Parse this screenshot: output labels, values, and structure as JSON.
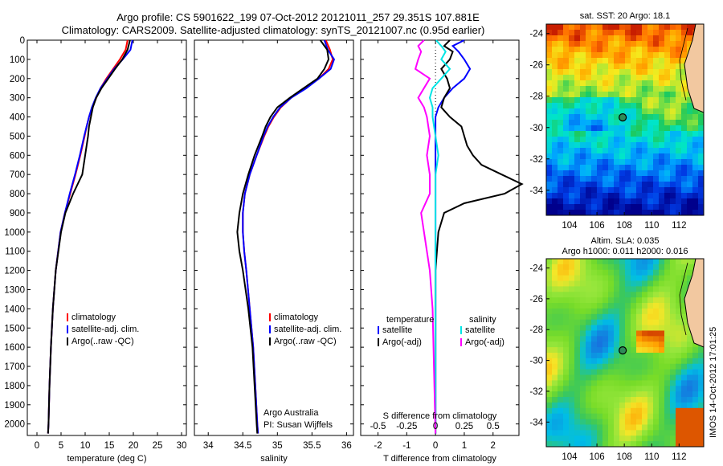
{
  "title_line1": "Argo profile: CS 5901622_199 07-Oct-2012 20121011_257 29.351S 107.881E",
  "title_line2": "Climatology: CARS2009. Satellite-adjusted climatology: synTS_20121007.nc (0.95d earlier)",
  "colors": {
    "climatology": "#ff0000",
    "satellite": "#0000ff",
    "argo": "#000000",
    "sat_salinity": "#00e5e5",
    "argo_salinity": "#ff00ff"
  },
  "chart_data": [
    {
      "type": "line",
      "xlabel": "temperature (deg C)",
      "xlim": [
        -2,
        31
      ],
      "ylim": [
        0,
        2060
      ],
      "y_ticks": [
        0,
        100,
        200,
        300,
        400,
        500,
        600,
        700,
        800,
        900,
        1000,
        1100,
        1200,
        1300,
        1400,
        1500,
        1600,
        1700,
        1800,
        1900,
        2000
      ],
      "x_ticks": [
        0,
        5,
        10,
        15,
        20,
        25,
        30
      ],
      "legend": [
        "climatology",
        "satellite-adj. clim.",
        "Argo(..raw -QC)"
      ],
      "series": [
        {
          "name": "climatology",
          "y": [
            0,
            50,
            100,
            150,
            200,
            250,
            300,
            350,
            400,
            450,
            500,
            600,
            700,
            800,
            900,
            1000,
            1200,
            1400,
            1600,
            1800,
            2000,
            2050
          ],
          "x": [
            18.8,
            18.4,
            17.2,
            15.8,
            14.4,
            13.2,
            12.3,
            11.5,
            10.8,
            10.3,
            9.9,
            9.0,
            8.0,
            6.9,
            5.8,
            4.9,
            3.9,
            3.3,
            2.9,
            2.6,
            2.4,
            2.3
          ]
        },
        {
          "name": "satellite-adj. clim.",
          "y": [
            0,
            50,
            100,
            150,
            200,
            250,
            300,
            350,
            400,
            450,
            500,
            600,
            700,
            800,
            900,
            1000,
            1200,
            1400,
            1600,
            1800,
            2000,
            2050
          ],
          "x": [
            19.8,
            19.4,
            17.8,
            16.0,
            14.6,
            13.2,
            12.2,
            11.4,
            10.8,
            10.3,
            9.8,
            8.9,
            7.9,
            6.8,
            5.8,
            4.9,
            3.9,
            3.3,
            2.9,
            2.6,
            2.4,
            2.3
          ]
        },
        {
          "name": "Argo(..raw -QC)",
          "y": [
            0,
            50,
            100,
            150,
            200,
            250,
            300,
            350,
            400,
            450,
            500,
            600,
            700,
            800,
            900,
            1000,
            1200,
            1400,
            1600,
            1800,
            2000,
            2050
          ],
          "x": [
            19.3,
            18.8,
            17.7,
            16.2,
            14.8,
            13.4,
            12.3,
            11.6,
            11.2,
            10.8,
            10.6,
            10.0,
            9.4,
            7.5,
            5.9,
            5.0,
            3.9,
            3.3,
            2.9,
            2.6,
            2.4,
            2.3
          ]
        }
      ]
    },
    {
      "type": "line",
      "xlabel": "salinity",
      "xlim": [
        33.8,
        36.1
      ],
      "ylim": [
        0,
        2060
      ],
      "x_ticks": [
        34,
        34.5,
        35,
        35.5,
        36
      ],
      "legend": [
        "climatology",
        "satellite-adj. clim.",
        "Argo(..raw -QC)"
      ],
      "annotation": [
        "Argo Australia",
        "PI: Susan Wijffels"
      ],
      "series": [
        {
          "name": "climatology",
          "y": [
            0,
            50,
            100,
            150,
            200,
            250,
            300,
            350,
            400,
            450,
            500,
            600,
            700,
            800,
            900,
            1000,
            1100,
            1200,
            1400,
            1600,
            1800,
            2000,
            2050
          ],
          "x": [
            35.7,
            35.76,
            35.8,
            35.74,
            35.6,
            35.4,
            35.2,
            35.05,
            34.95,
            34.87,
            34.81,
            34.7,
            34.6,
            34.53,
            34.5,
            34.5,
            34.52,
            34.55,
            34.6,
            34.65,
            34.68,
            34.71,
            34.72
          ]
        },
        {
          "name": "satellite-adj. clim.",
          "y": [
            0,
            50,
            100,
            150,
            200,
            250,
            300,
            350,
            400,
            450,
            500,
            600,
            700,
            800,
            900,
            1000,
            1100,
            1200,
            1400,
            1600,
            1800,
            2000,
            2050
          ],
          "x": [
            35.68,
            35.73,
            35.82,
            35.77,
            35.6,
            35.42,
            35.2,
            35.04,
            34.94,
            34.86,
            34.8,
            34.7,
            34.6,
            34.53,
            34.5,
            34.5,
            34.52,
            34.55,
            34.6,
            34.65,
            34.68,
            34.71,
            34.72
          ]
        },
        {
          "name": "Argo(..raw -QC)",
          "y": [
            0,
            50,
            100,
            150,
            200,
            250,
            300,
            350,
            400,
            450,
            500,
            600,
            700,
            800,
            900,
            1000,
            1100,
            1200,
            1400,
            1600,
            1800,
            2000,
            2050
          ],
          "x": [
            35.62,
            35.72,
            35.74,
            35.68,
            35.58,
            35.38,
            35.18,
            35.0,
            34.9,
            34.83,
            34.78,
            34.67,
            34.58,
            34.5,
            34.45,
            34.42,
            34.45,
            34.5,
            34.58,
            34.64,
            34.67,
            34.7,
            34.71
          ]
        }
      ]
    },
    {
      "type": "line",
      "xlabel": "T difference from climatology",
      "xlabel2": "S difference from climatology",
      "xlim": [
        -2.6,
        2.9
      ],
      "x_ticks": [
        -2,
        -1,
        0,
        1,
        2
      ],
      "x_ticks_top": [
        "-0.5",
        "-0.25",
        "0",
        "0.25",
        "0.5"
      ],
      "ylim": [
        0,
        2060
      ],
      "legend_left_title": "temperature",
      "legend_right_title": "salinity",
      "legend": [
        "satellite",
        "Argo(-adj)",
        "satellite",
        "Argo(-adj)"
      ],
      "series": [
        {
          "name": "temperature satellite",
          "y": [
            0,
            30,
            60,
            100,
            150,
            200,
            250,
            300,
            350,
            400,
            500,
            600,
            800,
            1000,
            1400,
            2050
          ],
          "x": [
            1.0,
            0.6,
            0.8,
            1.0,
            1.2,
            1.0,
            0.6,
            0.3,
            0.1,
            0.0,
            0.0,
            0.0,
            0.0,
            0.0,
            0.0,
            0.0
          ]
        },
        {
          "name": "temperature Argo(-adj)",
          "y": [
            0,
            30,
            60,
            100,
            150,
            200,
            250,
            300,
            350,
            400,
            450,
            500,
            550,
            600,
            650,
            700,
            750,
            800,
            850,
            900,
            1000,
            1100,
            1200,
            1400,
            1600,
            2050
          ],
          "x": [
            0.5,
            0.3,
            0.6,
            0.5,
            0.2,
            0.4,
            0.5,
            0.3,
            0.2,
            0.5,
            0.9,
            1.0,
            1.1,
            1.3,
            1.6,
            2.3,
            3.0,
            2.4,
            1.0,
            0.3,
            0.1,
            0.05,
            0.0,
            0.0,
            0.0,
            0.0
          ]
        },
        {
          "name": "salinity satellite",
          "y": [
            0,
            30,
            60,
            100,
            150,
            200,
            250,
            300,
            350,
            400,
            500,
            600,
            700,
            800,
            900,
            1000,
            1200,
            1400,
            2050
          ],
          "x": [
            0.02,
            0.2,
            0.35,
            0.2,
            0.5,
            0.2,
            -0.1,
            -0.2,
            -0.1,
            -0.1,
            0.0,
            0.1,
            0.0,
            0.0,
            0.0,
            0.0,
            0.0,
            0.0,
            0.0
          ]
        },
        {
          "name": "salinity Argo(-adj)",
          "y": [
            0,
            30,
            60,
            100,
            150,
            200,
            250,
            300,
            350,
            400,
            500,
            600,
            700,
            800,
            900,
            1000,
            1200,
            1400,
            2050
          ],
          "x": [
            -0.4,
            -0.6,
            -0.5,
            -0.6,
            -0.7,
            -0.2,
            -0.4,
            -0.6,
            -0.4,
            -0.3,
            -0.2,
            -0.3,
            -0.2,
            -0.2,
            -0.5,
            -0.4,
            -0.2,
            -0.1,
            0.0
          ]
        }
      ]
    }
  ],
  "maps": [
    {
      "title": "sat. SST: 20 Argo: 18.1",
      "xlim": [
        102.3,
        113.8
      ],
      "ylim": [
        -35.6,
        -23.4
      ],
      "x_ticks": [
        104,
        106,
        108,
        110,
        112
      ],
      "y_ticks": [
        -24,
        -26,
        -28,
        -30,
        -32,
        -34
      ],
      "argo_point": {
        "lon": 107.881,
        "lat": -29.351
      }
    },
    {
      "title_line1": "Altim. SLA: 0.035",
      "title_line2": "Argo h1000: 0.011 h2000: 0.016",
      "xlim": [
        102.3,
        113.8
      ],
      "ylim": [
        -35.6,
        -23.4
      ],
      "x_ticks": [
        104,
        106,
        108,
        110,
        112
      ],
      "y_ticks": [
        -24,
        -26,
        -28,
        -30,
        -32,
        -34
      ],
      "argo_point": {
        "lon": 107.881,
        "lat": -29.351
      }
    }
  ],
  "watermark": "IMOS 14-Oct-2012 17:01:25"
}
